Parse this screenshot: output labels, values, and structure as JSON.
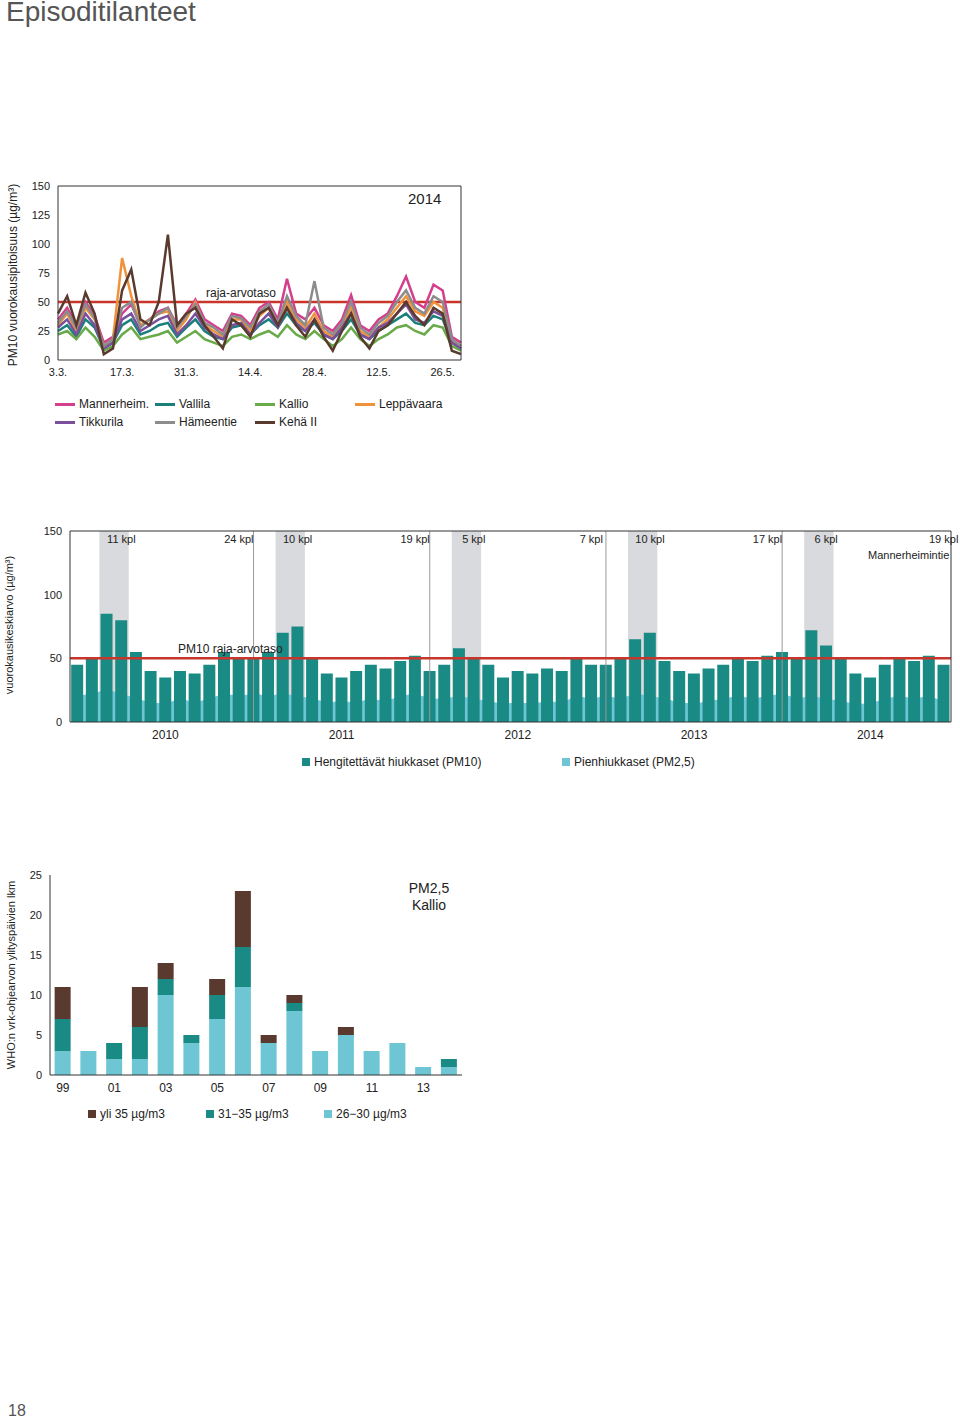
{
  "heading": "Episoditilanteet",
  "page_number": 18,
  "chart_data": [
    {
      "type": "line",
      "title": "2014",
      "ylabel": "PM10 vuorokausipitoisuus (µg/m³)",
      "ylim": [
        0,
        150
      ],
      "yticks": [
        0,
        25,
        50,
        75,
        100,
        125,
        150
      ],
      "grid": false,
      "legend": "bottom",
      "reference_line": {
        "value": 50,
        "label": "raja-arvotaso",
        "color": "#c8352b"
      },
      "categories": [
        "3.3.",
        null,
        null,
        null,
        null,
        null,
        null,
        "17.3.",
        null,
        null,
        null,
        null,
        null,
        null,
        "31.3.",
        null,
        null,
        null,
        null,
        null,
        null,
        "14.4.",
        null,
        null,
        null,
        null,
        null,
        null,
        "28.4.",
        null,
        null,
        null,
        null,
        null,
        null,
        "12.5.",
        null,
        null,
        null,
        null,
        null,
        null,
        "26.5.",
        null,
        null
      ],
      "series": [
        {
          "name": "Mannerheim.",
          "color": "#d43f8d",
          "values": [
            35,
            45,
            30,
            50,
            38,
            15,
            20,
            40,
            48,
            30,
            35,
            42,
            45,
            30,
            40,
            52,
            35,
            30,
            25,
            40,
            38,
            30,
            45,
            50,
            35,
            70,
            40,
            35,
            45,
            30,
            25,
            35,
            56,
            30,
            25,
            35,
            40,
            55,
            72,
            50,
            45,
            65,
            60,
            20,
            15
          ]
        },
        {
          "name": "Vallila",
          "color": "#1a7f7a",
          "values": [
            25,
            30,
            20,
            35,
            28,
            10,
            15,
            30,
            35,
            22,
            25,
            30,
            32,
            20,
            28,
            35,
            25,
            20,
            18,
            28,
            30,
            22,
            30,
            35,
            28,
            40,
            30,
            25,
            32,
            22,
            18,
            25,
            35,
            22,
            18,
            25,
            30,
            35,
            40,
            32,
            30,
            38,
            35,
            15,
            10
          ]
        },
        {
          "name": "Kallio",
          "color": "#6aaa4b",
          "values": [
            22,
            25,
            18,
            28,
            20,
            8,
            12,
            22,
            28,
            18,
            20,
            22,
            25,
            15,
            20,
            25,
            18,
            15,
            12,
            20,
            22,
            18,
            22,
            25,
            20,
            30,
            22,
            18,
            25,
            18,
            12,
            18,
            28,
            18,
            12,
            18,
            22,
            28,
            30,
            25,
            22,
            30,
            28,
            12,
            8
          ]
        },
        {
          "name": "Leppävaara",
          "color": "#f0923a",
          "values": [
            30,
            40,
            25,
            45,
            35,
            12,
            18,
            88,
            55,
            30,
            35,
            40,
            42,
            25,
            35,
            50,
            30,
            25,
            20,
            35,
            35,
            25,
            38,
            45,
            30,
            50,
            35,
            28,
            40,
            25,
            20,
            30,
            45,
            25,
            20,
            28,
            35,
            45,
            55,
            42,
            38,
            50,
            45,
            15,
            12
          ]
        },
        {
          "name": "Tikkurila",
          "color": "#7a4f9c",
          "values": [
            28,
            35,
            22,
            40,
            30,
            10,
            15,
            35,
            40,
            25,
            30,
            35,
            38,
            22,
            30,
            40,
            28,
            22,
            18,
            30,
            32,
            22,
            32,
            40,
            28,
            45,
            32,
            25,
            35,
            22,
            18,
            28,
            40,
            22,
            18,
            28,
            32,
            40,
            48,
            35,
            32,
            42,
            38,
            15,
            10
          ]
        },
        {
          "name": "Hämeentie",
          "color": "#8c8c8c",
          "values": [
            32,
            42,
            28,
            48,
            36,
            12,
            18,
            45,
            50,
            28,
            35,
            40,
            45,
            28,
            38,
            48,
            32,
            28,
            22,
            38,
            36,
            28,
            42,
            48,
            32,
            55,
            38,
            30,
            68,
            28,
            22,
            32,
            50,
            28,
            22,
            32,
            38,
            50,
            60,
            45,
            40,
            55,
            50,
            18,
            12
          ]
        },
        {
          "name": "Kehä II",
          "color": "#5a3a2e",
          "values": [
            40,
            55,
            30,
            58,
            40,
            5,
            10,
            60,
            78,
            35,
            30,
            50,
            108,
            30,
            40,
            45,
            30,
            20,
            10,
            35,
            30,
            20,
            40,
            45,
            30,
            45,
            30,
            20,
            35,
            20,
            8,
            25,
            40,
            20,
            10,
            25,
            30,
            40,
            50,
            38,
            30,
            45,
            40,
            8,
            5
          ]
        }
      ]
    },
    {
      "type": "bar",
      "subtitle": "Mannerheimintie",
      "ylabel": "vuorokausikeskiarvo (µg/m³)",
      "ylim": [
        0,
        150
      ],
      "yticks": [
        0,
        50,
        100,
        150
      ],
      "grid": false,
      "legend": "bottom",
      "reference_line": {
        "value": 50,
        "label": "PM10 raja-arvotaso",
        "color": "#c8352b"
      },
      "highlight_ranges": [
        [
          2,
          3
        ],
        [
          14,
          15
        ],
        [
          26,
          27
        ],
        [
          38,
          39
        ],
        [
          50,
          51
        ]
      ],
      "annotations": [
        {
          "text": "11 kpl",
          "x": 3
        },
        {
          "text": "24 kpl",
          "x": 11
        },
        {
          "text": "10 kpl",
          "x": 15
        },
        {
          "text": "19 kpl",
          "x": 23
        },
        {
          "text": "5 kpl",
          "x": 27
        },
        {
          "text": "7 kpl",
          "x": 35
        },
        {
          "text": "10 kpl",
          "x": 39
        },
        {
          "text": "17 kpl",
          "x": 47
        },
        {
          "text": "6 kpl",
          "x": 51
        },
        {
          "text": "19 kpl",
          "x": 59
        }
      ],
      "categories": [
        null,
        null,
        null,
        null,
        null,
        null,
        "2010",
        null,
        null,
        null,
        null,
        null,
        null,
        null,
        null,
        null,
        null,
        null,
        "2011",
        null,
        null,
        null,
        null,
        null,
        null,
        null,
        null,
        null,
        null,
        null,
        "2012",
        null,
        null,
        null,
        null,
        null,
        null,
        null,
        null,
        null,
        null,
        null,
        "2013",
        null,
        null,
        null,
        null,
        null,
        null,
        null,
        null,
        null,
        null,
        null,
        "2014",
        null,
        null,
        null,
        null,
        null
      ],
      "series": [
        {
          "name": "Hengitettävät hiukkaset (PM10)",
          "type": "bar",
          "color": "#1a8a85",
          "values": [
            45,
            50,
            85,
            80,
            55,
            40,
            35,
            40,
            38,
            45,
            55,
            50,
            50,
            55,
            70,
            75,
            50,
            38,
            35,
            40,
            45,
            42,
            48,
            52,
            40,
            45,
            58,
            50,
            45,
            35,
            40,
            38,
            42,
            40,
            50,
            45,
            45,
            50,
            65,
            70,
            48,
            40,
            38,
            42,
            45,
            50,
            48,
            52,
            55,
            50,
            72,
            60,
            50,
            38,
            35,
            45,
            50,
            48,
            52,
            45
          ]
        },
        {
          "name": "Pienhiukkaset (PM2,5)",
          "type": "area",
          "color": "#6ec6d4",
          "values": [
            20,
            22,
            25,
            22,
            18,
            15,
            14,
            18,
            15,
            18,
            22,
            20,
            22,
            20,
            22,
            20,
            18,
            15,
            16,
            15,
            18,
            16,
            20,
            22,
            18,
            18,
            20,
            18,
            16,
            14,
            15,
            14,
            16,
            15,
            20,
            18,
            20,
            18,
            22,
            20,
            18,
            15,
            14,
            16,
            18,
            20,
            18,
            20,
            22,
            18,
            20,
            18,
            16,
            14,
            14,
            18,
            20,
            18,
            20,
            16
          ]
        }
      ]
    },
    {
      "type": "bar",
      "stacked": true,
      "title": "PM2,5 Kallio",
      "ylabel": "WHO:n vrk-ohjearvon ylityspäivien lkm",
      "ylim": [
        0,
        25
      ],
      "yticks": [
        0,
        5,
        10,
        15,
        20,
        25
      ],
      "grid": false,
      "legend": "bottom",
      "categories": [
        "99",
        null,
        "01",
        null,
        "03",
        null,
        "05",
        null,
        "07",
        null,
        "09",
        null,
        "11",
        null,
        "13",
        null
      ],
      "series": [
        {
          "name": "yli 35 µg/m3",
          "color": "#5a3a2e",
          "values": [
            4,
            0,
            0,
            5,
            2,
            0,
            2,
            7,
            1,
            1,
            0,
            1,
            0,
            0,
            0,
            0
          ]
        },
        {
          "name": "31−35 µg/m3",
          "color": "#1a8a85",
          "values": [
            4,
            0,
            2,
            4,
            2,
            1,
            3,
            5,
            0,
            1,
            0,
            0,
            0,
            0,
            0,
            1
          ]
        },
        {
          "name": "26−30 µg/m3",
          "color": "#6ec6d4",
          "values": [
            3,
            3,
            2,
            2,
            10,
            4,
            7,
            11,
            4,
            8,
            3,
            5,
            3,
            4,
            1,
            1
          ]
        }
      ]
    }
  ]
}
